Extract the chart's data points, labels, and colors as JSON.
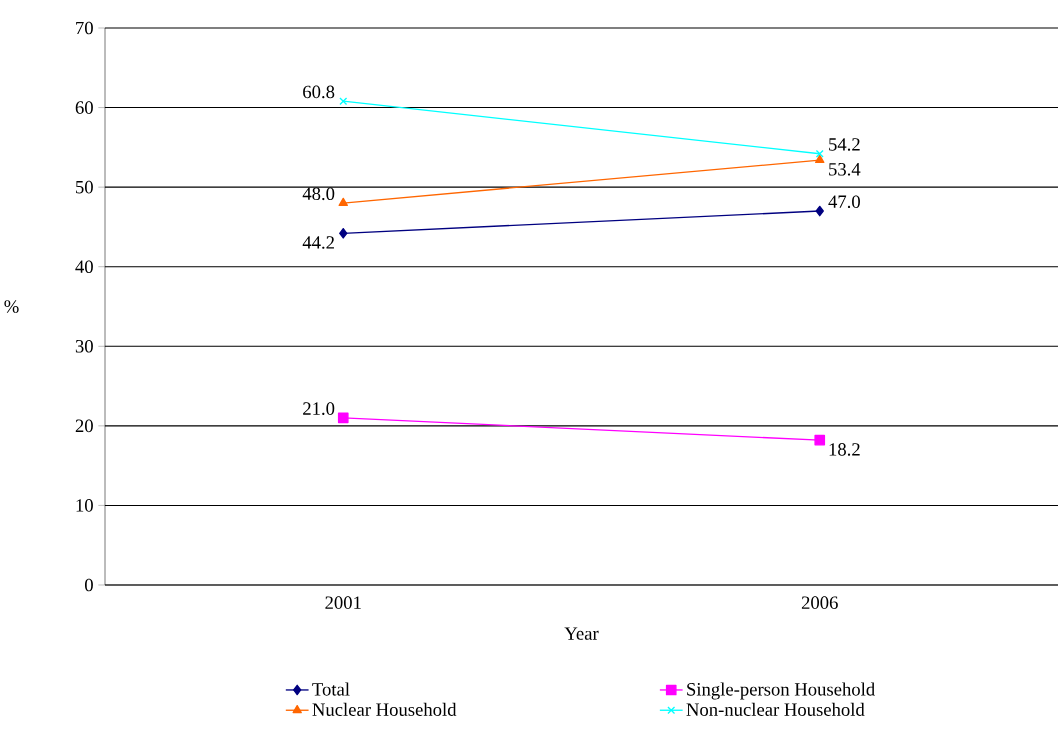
{
  "chart_data": {
    "type": "line",
    "xlabel": "Year",
    "ylabel": "%",
    "categories": [
      "2001",
      "2006"
    ],
    "series": [
      {
        "name": "Total",
        "color": "#000080",
        "marker": "diamond",
        "values": [
          44.2,
          47.0
        ],
        "value_labels": [
          "44.2",
          "47.0"
        ]
      },
      {
        "name": "Single-person Household",
        "color": "#ff00ff",
        "marker": "square",
        "values": [
          21.0,
          18.2
        ],
        "value_labels": [
          "21.0",
          "18.2"
        ]
      },
      {
        "name": "Nuclear Household",
        "color": "#ff6600",
        "marker": "triangle",
        "values": [
          48.0,
          53.4
        ],
        "value_labels": [
          "48.0",
          "53.4"
        ]
      },
      {
        "name": "Non-nuclear Household",
        "color": "#00ffff",
        "marker": "cross",
        "values": [
          60.8,
          54.2
        ],
        "value_labels": [
          "60.8",
          "54.2"
        ]
      }
    ],
    "ylim": [
      0,
      70
    ],
    "yticks": [
      0,
      10,
      20,
      30,
      40,
      50,
      60,
      70
    ],
    "grid": "y",
    "legend": "bottom"
  }
}
